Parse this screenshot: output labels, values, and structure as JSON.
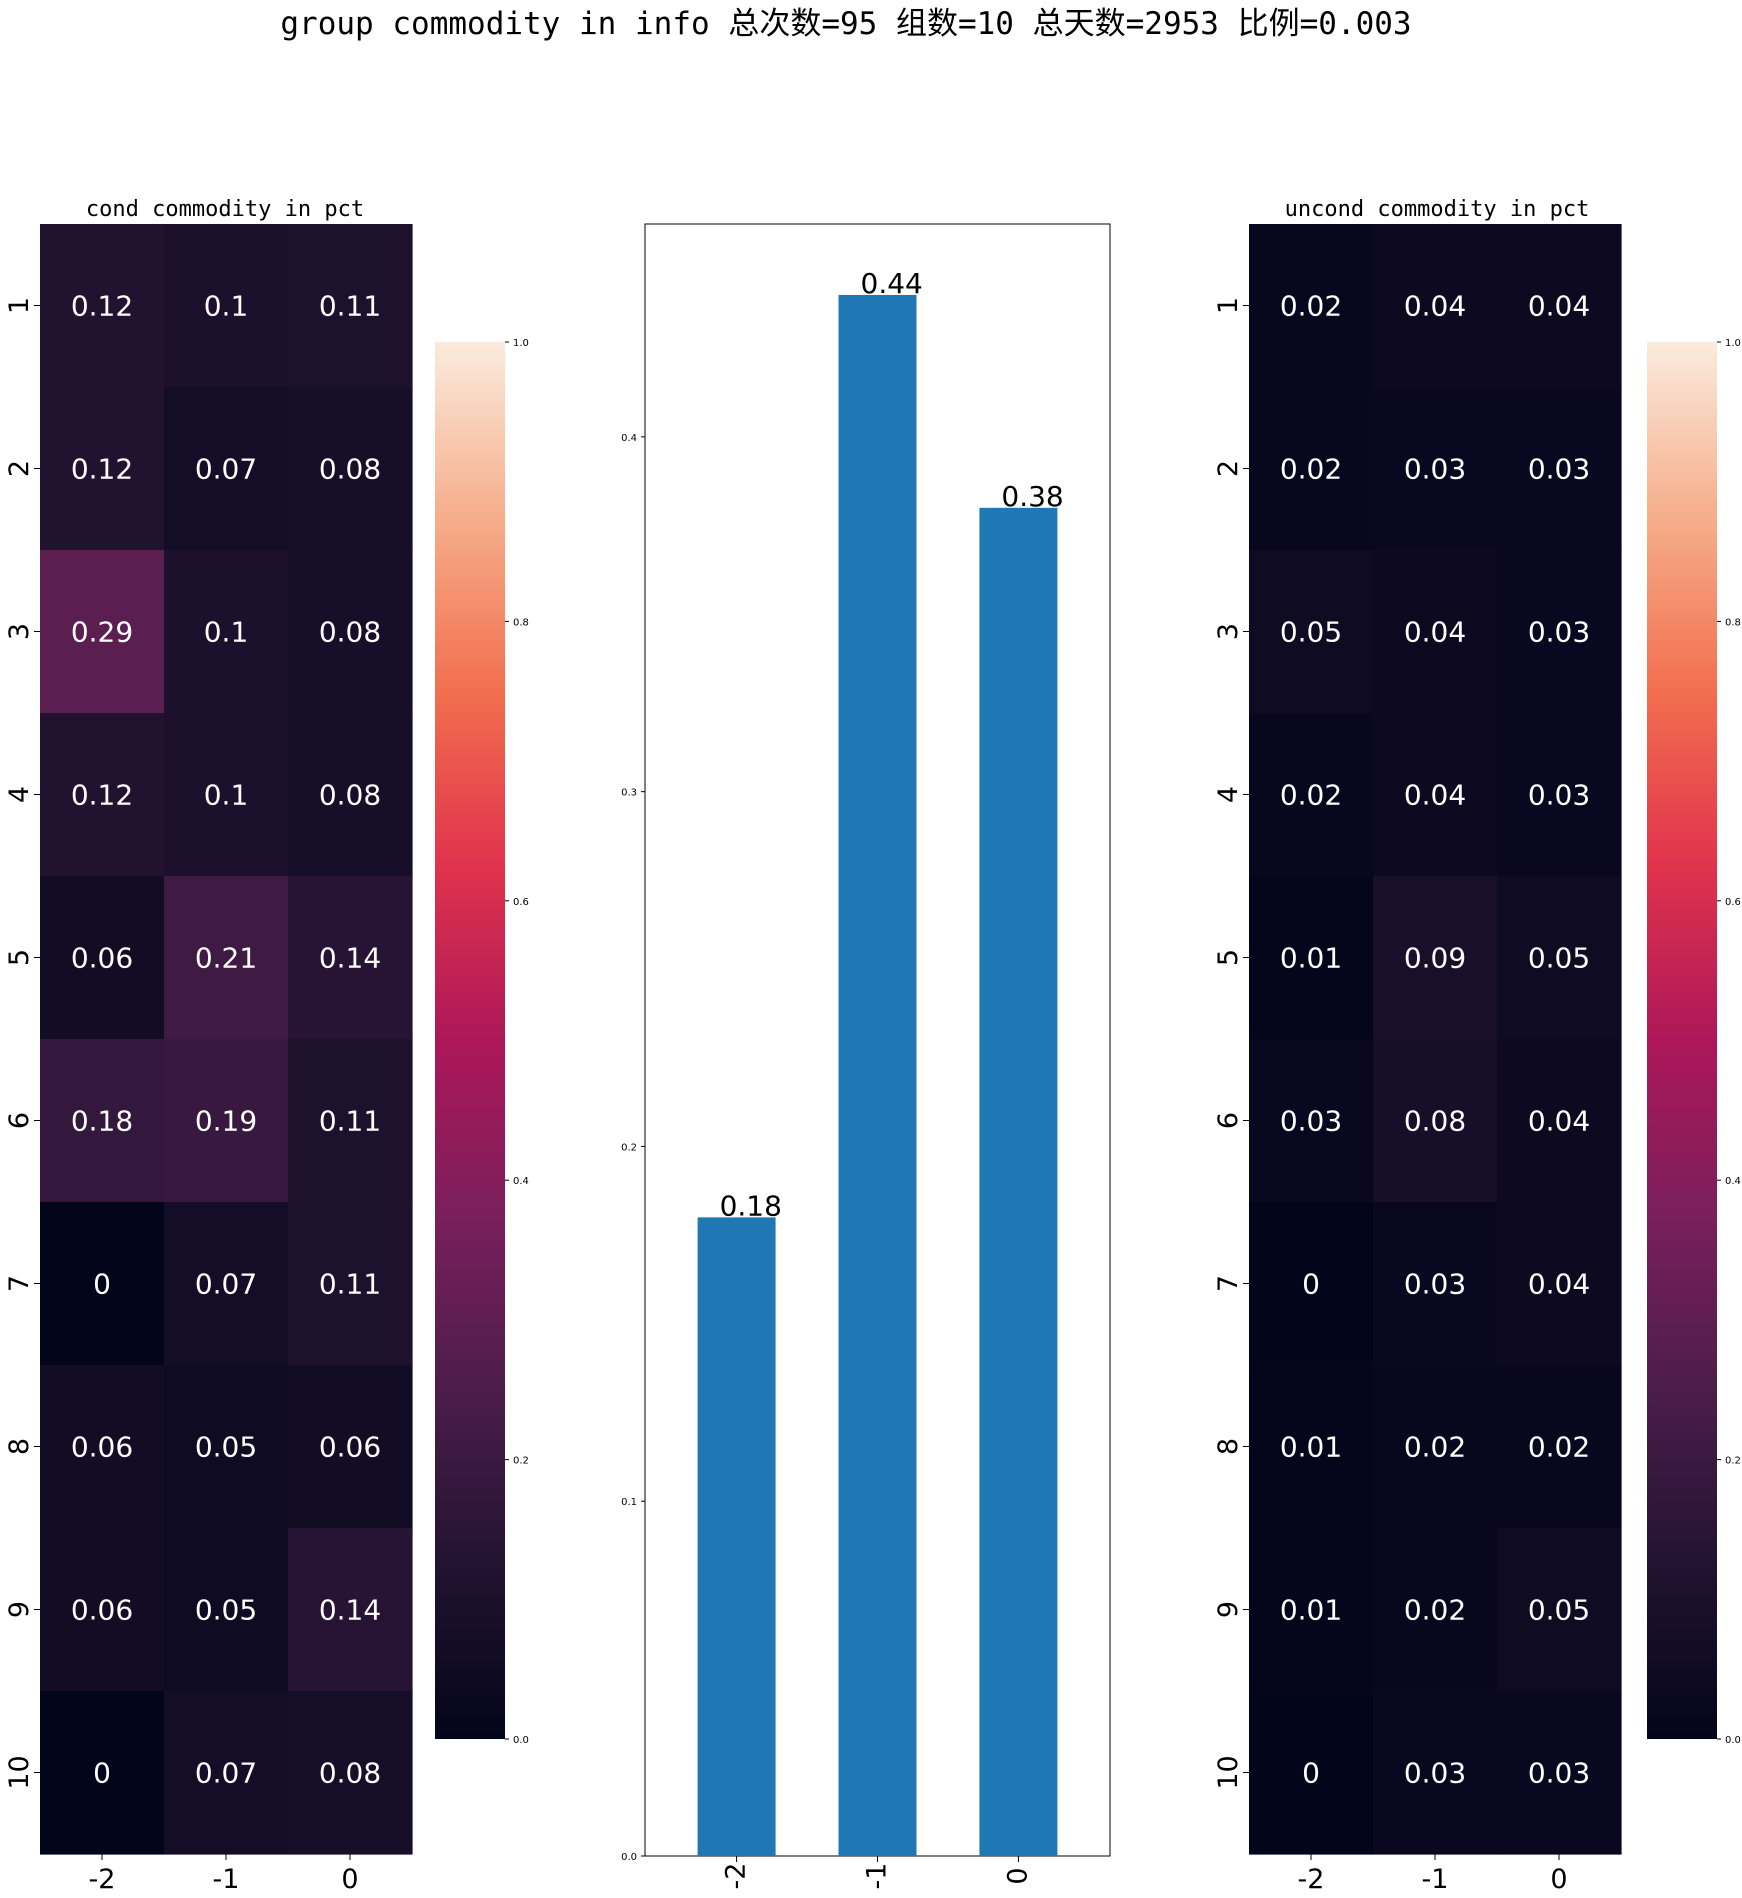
{
  "figure": {
    "suptitle": "group commodity in info 总次数=95 组数=10 总天数=2953 比例=0.003"
  },
  "chart_data": [
    {
      "type": "heatmap",
      "title": "cond commodity in pct",
      "x_labels": [
        "-2",
        "-1",
        "0"
      ],
      "y_labels": [
        "1",
        "2",
        "3",
        "4",
        "5",
        "6",
        "7",
        "8",
        "9",
        "10"
      ],
      "values": [
        [
          0.12,
          0.1,
          0.11
        ],
        [
          0.12,
          0.07,
          0.08
        ],
        [
          0.29,
          0.1,
          0.08
        ],
        [
          0.12,
          0.1,
          0.08
        ],
        [
          0.06,
          0.21,
          0.14
        ],
        [
          0.18,
          0.19,
          0.11
        ],
        [
          0,
          0.07,
          0.11
        ],
        [
          0.06,
          0.05,
          0.06
        ],
        [
          0.06,
          0.05,
          0.14
        ],
        [
          0,
          0.07,
          0.08
        ]
      ],
      "cell_labels": [
        [
          "0.12",
          "0.1",
          "0.11"
        ],
        [
          "0.12",
          "0.07",
          "0.08"
        ],
        [
          "0.29",
          "0.1",
          "0.08"
        ],
        [
          "0.12",
          "0.1",
          "0.08"
        ],
        [
          "0.06",
          "0.21",
          "0.14"
        ],
        [
          "0.18",
          "0.19",
          "0.11"
        ],
        [
          "0",
          "0.07",
          "0.11"
        ],
        [
          "0.06",
          "0.05",
          "0.06"
        ],
        [
          "0.06",
          "0.05",
          "0.14"
        ],
        [
          "0",
          "0.07",
          "0.08"
        ]
      ],
      "vmin": 0,
      "vmax": 1,
      "colormap": "rocket",
      "colorbar_ticks": [
        "0.0",
        "0.2",
        "0.4",
        "0.6",
        "0.8",
        "1.0"
      ]
    },
    {
      "type": "bar",
      "title": "",
      "categories": [
        "-2",
        "-1",
        "0"
      ],
      "values": [
        0.18,
        0.44,
        0.38
      ],
      "value_labels": [
        "0.18",
        "0.44",
        "0.38"
      ],
      "ylim": [
        0,
        0.46
      ],
      "y_ticks": [
        0.0,
        0.1,
        0.2,
        0.3,
        0.4
      ],
      "y_tick_labels": [
        "0.0",
        "0.1",
        "0.2",
        "0.3",
        "0.4"
      ],
      "bar_color": "#1f77b4",
      "xlabel": "",
      "ylabel": ""
    },
    {
      "type": "heatmap",
      "title": "uncond commodity in pct",
      "x_labels": [
        "-2",
        "-1",
        "0"
      ],
      "y_labels": [
        "1",
        "2",
        "3",
        "4",
        "5",
        "6",
        "7",
        "8",
        "9",
        "10"
      ],
      "values": [
        [
          0.02,
          0.04,
          0.04
        ],
        [
          0.02,
          0.03,
          0.03
        ],
        [
          0.05,
          0.04,
          0.03
        ],
        [
          0.02,
          0.04,
          0.03
        ],
        [
          0.01,
          0.09,
          0.05
        ],
        [
          0.03,
          0.08,
          0.04
        ],
        [
          0,
          0.03,
          0.04
        ],
        [
          0.01,
          0.02,
          0.02
        ],
        [
          0.01,
          0.02,
          0.05
        ],
        [
          0,
          0.03,
          0.03
        ]
      ],
      "cell_labels": [
        [
          "0.02",
          "0.04",
          "0.04"
        ],
        [
          "0.02",
          "0.03",
          "0.03"
        ],
        [
          "0.05",
          "0.04",
          "0.03"
        ],
        [
          "0.02",
          "0.04",
          "0.03"
        ],
        [
          "0.01",
          "0.09",
          "0.05"
        ],
        [
          "0.03",
          "0.08",
          "0.04"
        ],
        [
          "0",
          "0.03",
          "0.04"
        ],
        [
          "0.01",
          "0.02",
          "0.02"
        ],
        [
          "0.01",
          "0.02",
          "0.05"
        ],
        [
          "0",
          "0.03",
          "0.03"
        ]
      ],
      "vmin": 0,
      "vmax": 1,
      "colormap": "rocket",
      "colorbar_ticks": [
        "0.0",
        "0.2",
        "0.4",
        "0.6",
        "0.8",
        "1.0"
      ]
    }
  ]
}
